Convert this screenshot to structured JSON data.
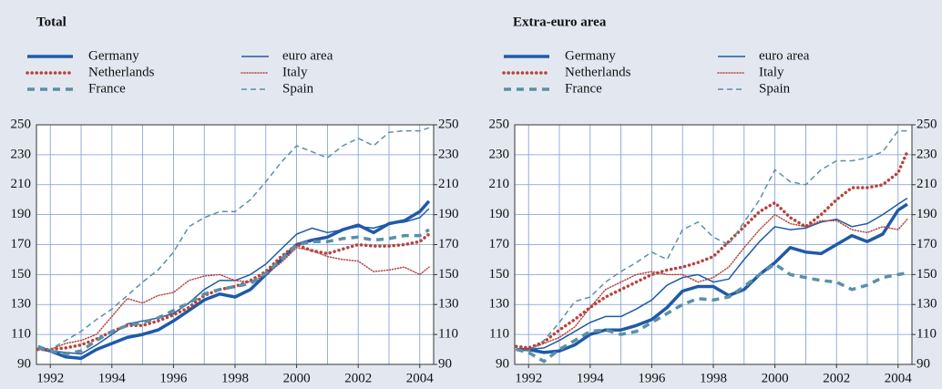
{
  "chart_data": [
    {
      "type": "line",
      "title": "Total",
      "x": [
        1991.6,
        1992,
        1992.5,
        1993,
        1993.5,
        1994,
        1994.5,
        1995,
        1995.5,
        1996,
        1996.5,
        1997,
        1997.5,
        1998,
        1998.5,
        1999,
        1999.5,
        2000,
        2000.5,
        2001,
        2001.5,
        2002,
        2002.5,
        2003,
        2003.5,
        2004,
        2004.3
      ],
      "xlim": [
        1991.55,
        2004.45
      ],
      "xticks": [
        1992,
        1994,
        1996,
        1998,
        2000,
        2002,
        2004
      ],
      "xgrid": [
        1992,
        1993,
        1994,
        1995,
        1996,
        1997,
        1998,
        1999,
        2000,
        2001,
        2002,
        2003,
        2004
      ],
      "ylim": [
        90,
        250
      ],
      "yticks": [
        90,
        110,
        130,
        150,
        170,
        190,
        210,
        230,
        250
      ],
      "y2lim": [
        90,
        250
      ],
      "y2ticks": [
        90,
        110,
        130,
        150,
        170,
        190,
        210,
        230,
        250
      ],
      "grid": true,
      "series": [
        {
          "name": "Germany",
          "color": "#1f5aa6",
          "dash": "solid",
          "weight": "heavy",
          "values": [
            101,
            99,
            95,
            94,
            100,
            104,
            108,
            110,
            113,
            119,
            126,
            133,
            137,
            135,
            140,
            150,
            160,
            170,
            173,
            175,
            180,
            183,
            178,
            184,
            186,
            192,
            199
          ]
        },
        {
          "name": "euro area",
          "color": "#1f5aa6",
          "dash": "solid",
          "weight": "light",
          "values": [
            101,
            99,
            98,
            97,
            103,
            110,
            117,
            119,
            121,
            124,
            131,
            140,
            146,
            146,
            150,
            157,
            167,
            177,
            181,
            178,
            180,
            182,
            181,
            184,
            185,
            188,
            194
          ]
        },
        {
          "name": "Netherlands",
          "color": "#b8433a",
          "dash": "dotted",
          "weight": "heavy",
          "values": [
            100,
            100,
            101,
            103,
            107,
            112,
            116,
            116,
            119,
            123,
            128,
            136,
            140,
            142,
            146,
            152,
            162,
            170,
            166,
            164,
            167,
            170,
            169,
            169,
            170,
            172,
            177
          ]
        },
        {
          "name": "Italy",
          "color": "#b8433a",
          "dash": "dotted",
          "weight": "light",
          "values": [
            100,
            100,
            104,
            106,
            110,
            122,
            134,
            131,
            136,
            138,
            146,
            149,
            150,
            146,
            145,
            150,
            158,
            168,
            166,
            162,
            160,
            159,
            152,
            153,
            155,
            150,
            155
          ]
        },
        {
          "name": "France",
          "color": "#5b8fa8",
          "dash": "dashed",
          "weight": "heavy",
          "values": [
            102,
            99,
            97,
            99,
            106,
            112,
            116,
            118,
            121,
            126,
            131,
            137,
            140,
            142,
            144,
            151,
            160,
            170,
            172,
            172,
            174,
            175,
            173,
            174,
            176,
            176,
            180
          ]
        },
        {
          "name": "Spain",
          "color": "#5b8fa8",
          "dash": "dashed",
          "weight": "light",
          "values": [
            100,
            100,
            106,
            112,
            120,
            127,
            136,
            145,
            153,
            165,
            182,
            188,
            192,
            192,
            200,
            212,
            225,
            236,
            232,
            228,
            236,
            241,
            236,
            245,
            246,
            246,
            248
          ]
        }
      ]
    },
    {
      "type": "line",
      "title": "Extra-euro area",
      "x": [
        1991.6,
        1992,
        1992.5,
        1993,
        1993.5,
        1994,
        1994.5,
        1995,
        1995.5,
        1996,
        1996.5,
        1997,
        1997.5,
        1998,
        1998.5,
        1999,
        1999.5,
        2000,
        2000.5,
        2001,
        2001.5,
        2002,
        2002.5,
        2003,
        2003.5,
        2004,
        2004.3
      ],
      "xlim": [
        1991.55,
        2004.45
      ],
      "xticks": [
        1992,
        1994,
        1996,
        1998,
        2000,
        2002,
        2004
      ],
      "xgrid": [
        1992,
        1993,
        1994,
        1995,
        1996,
        1997,
        1998,
        1999,
        2000,
        2001,
        2002,
        2003,
        2004
      ],
      "ylim": [
        90,
        250
      ],
      "yticks": [
        90,
        110,
        130,
        150,
        170,
        190,
        210,
        230,
        250
      ],
      "y2lim": [
        90,
        250
      ],
      "y2ticks": [
        90,
        110,
        130,
        150,
        170,
        190,
        210,
        230,
        250
      ],
      "grid": true,
      "series": [
        {
          "name": "Germany",
          "color": "#1f5aa6",
          "dash": "solid",
          "weight": "heavy",
          "values": [
            100,
            100,
            98,
            99,
            103,
            110,
            113,
            113,
            116,
            120,
            128,
            139,
            142,
            142,
            136,
            140,
            150,
            158,
            168,
            165,
            164,
            170,
            176,
            172,
            177,
            193,
            197
          ]
        },
        {
          "name": "euro area",
          "color": "#1f5aa6",
          "dash": "solid",
          "weight": "light",
          "values": [
            100,
            100,
            101,
            106,
            112,
            118,
            122,
            122,
            127,
            133,
            143,
            148,
            150,
            145,
            147,
            160,
            172,
            182,
            180,
            181,
            185,
            187,
            182,
            184,
            190,
            197,
            201
          ]
        },
        {
          "name": "Netherlands",
          "color": "#b8433a",
          "dash": "dotted",
          "weight": "heavy",
          "values": [
            102,
            101,
            105,
            113,
            120,
            128,
            135,
            140,
            145,
            150,
            153,
            155,
            158,
            162,
            172,
            182,
            192,
            198,
            188,
            182,
            190,
            200,
            208,
            208,
            210,
            218,
            232
          ]
        },
        {
          "name": "Italy",
          "color": "#b8433a",
          "dash": "dotted",
          "weight": "light",
          "values": [
            100,
            100,
            104,
            108,
            115,
            128,
            140,
            145,
            150,
            152,
            150,
            150,
            145,
            148,
            155,
            168,
            180,
            190,
            184,
            182,
            186,
            186,
            180,
            178,
            182,
            180,
            187
          ]
        },
        {
          "name": "France",
          "color": "#5b8fa8",
          "dash": "dashed",
          "weight": "heavy",
          "values": [
            100,
            98,
            92,
            100,
            106,
            112,
            113,
            110,
            112,
            118,
            124,
            130,
            134,
            133,
            135,
            142,
            150,
            157,
            150,
            148,
            146,
            145,
            140,
            143,
            148,
            150,
            151
          ]
        },
        {
          "name": "Spain",
          "color": "#5b8fa8",
          "dash": "dashed",
          "weight": "light",
          "values": [
            100,
            99,
            106,
            118,
            132,
            135,
            145,
            152,
            158,
            165,
            160,
            180,
            185,
            175,
            170,
            185,
            200,
            220,
            212,
            210,
            220,
            226,
            226,
            228,
            232,
            246,
            246
          ]
        }
      ]
    }
  ]
}
